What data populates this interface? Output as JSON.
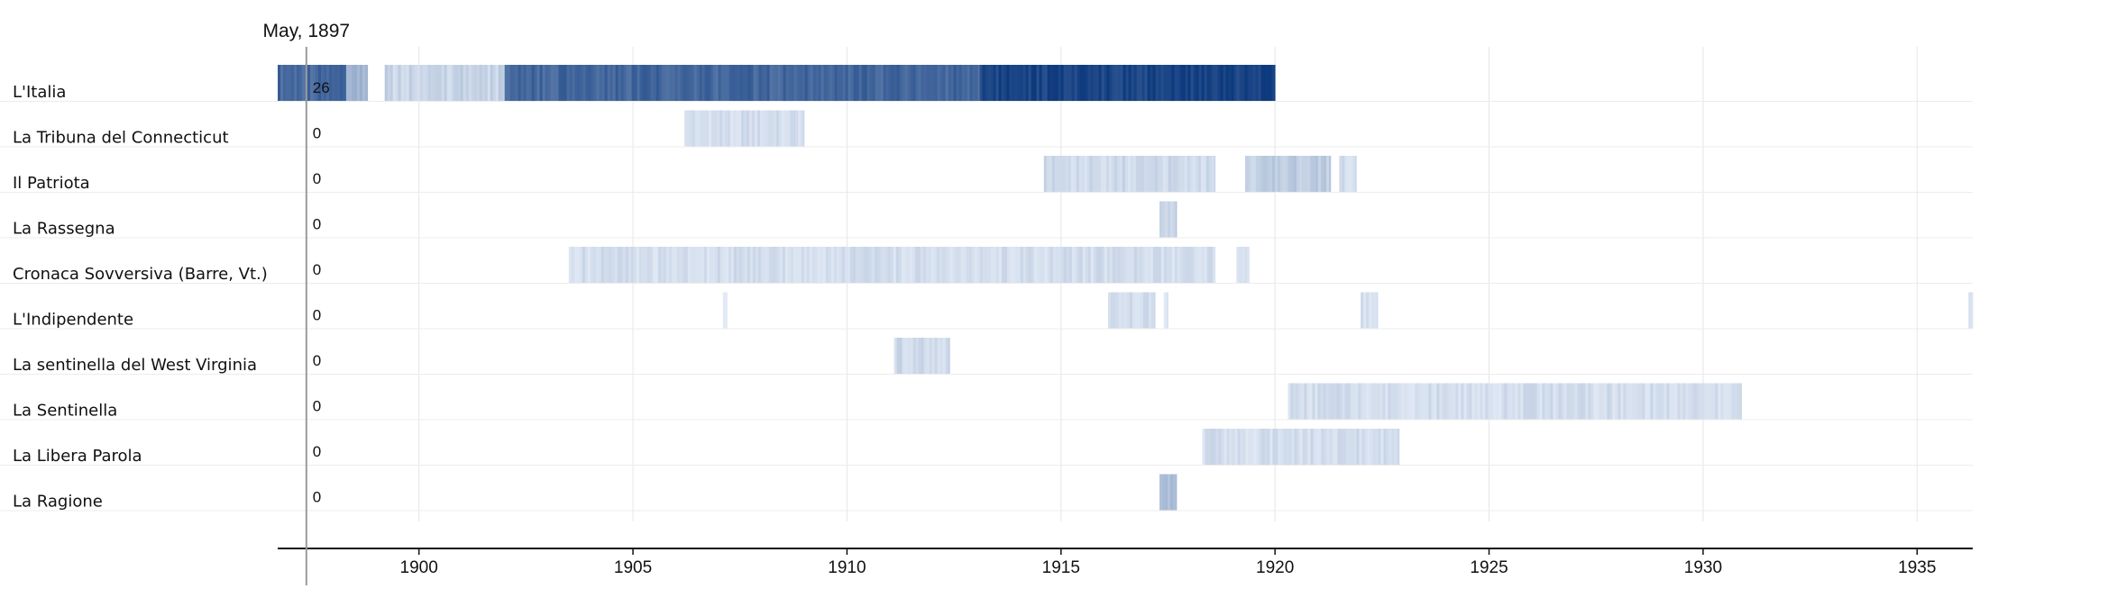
{
  "chart_data": {
    "type": "heatmap",
    "title": "",
    "xlabel": "",
    "ylabel": "",
    "xlim": [
      1896.7,
      1936.3
    ],
    "grid": true,
    "x_ticks": [
      {
        "value": 1900,
        "label": "1900"
      },
      {
        "value": 1905,
        "label": "1905"
      },
      {
        "value": 1910,
        "label": "1910"
      },
      {
        "value": 1915,
        "label": "1915"
      },
      {
        "value": 1920,
        "label": "1920"
      },
      {
        "value": 1925,
        "label": "1925"
      },
      {
        "value": 1930,
        "label": "1930"
      },
      {
        "value": 1935,
        "label": "1935"
      }
    ],
    "cursor": {
      "x": 1897.37,
      "label": "May, 1897"
    },
    "color_scale": {
      "low": "#e9f0f9",
      "high": "#0d3a7e"
    },
    "series": [
      {
        "name": "L'Italia",
        "cursor_value": "26",
        "segments": [
          {
            "start": 1896.7,
            "end": 1898.3,
            "intensity": 0.75
          },
          {
            "start": 1898.3,
            "end": 1898.8,
            "intensity": 0.3
          },
          {
            "start": 1899.2,
            "end": 1902.0,
            "intensity": 0.15
          },
          {
            "start": 1902.0,
            "end": 1913.1,
            "intensity": 0.75
          },
          {
            "start": 1913.1,
            "end": 1920.0,
            "intensity": 0.95
          }
        ]
      },
      {
        "name": "La Tribuna del Connecticut",
        "cursor_value": "0",
        "segments": [
          {
            "start": 1906.2,
            "end": 1909.0,
            "intensity": 0.1
          }
        ]
      },
      {
        "name": "Il Patriota",
        "cursor_value": "0",
        "segments": [
          {
            "start": 1914.6,
            "end": 1918.6,
            "intensity": 0.12
          },
          {
            "start": 1919.3,
            "end": 1921.3,
            "intensity": 0.18
          },
          {
            "start": 1921.5,
            "end": 1921.9,
            "intensity": 0.1
          }
        ]
      },
      {
        "name": "La Rassegna",
        "cursor_value": "0",
        "segments": [
          {
            "start": 1917.3,
            "end": 1917.7,
            "intensity": 0.18
          }
        ]
      },
      {
        "name": "Cronaca Sovversiva (Barre, Vt.)",
        "cursor_value": "0",
        "segments": [
          {
            "start": 1903.5,
            "end": 1918.6,
            "intensity": 0.1
          },
          {
            "start": 1919.1,
            "end": 1919.4,
            "intensity": 0.06
          }
        ]
      },
      {
        "name": "L'Indipendente",
        "cursor_value": "0",
        "segments": [
          {
            "start": 1907.1,
            "end": 1907.2,
            "intensity": 0.06
          },
          {
            "start": 1916.1,
            "end": 1917.2,
            "intensity": 0.12
          },
          {
            "start": 1917.4,
            "end": 1917.5,
            "intensity": 0.06
          },
          {
            "start": 1922.0,
            "end": 1922.4,
            "intensity": 0.1
          },
          {
            "start": 1936.2,
            "end": 1936.3,
            "intensity": 0.06
          }
        ]
      },
      {
        "name": "La sentinella del West Virginia",
        "cursor_value": "0",
        "segments": [
          {
            "start": 1911.1,
            "end": 1912.4,
            "intensity": 0.12
          }
        ]
      },
      {
        "name": "La Sentinella",
        "cursor_value": "0",
        "segments": [
          {
            "start": 1920.3,
            "end": 1930.9,
            "intensity": 0.1
          }
        ]
      },
      {
        "name": "La Libera Parola",
        "cursor_value": "0",
        "segments": [
          {
            "start": 1918.3,
            "end": 1922.9,
            "intensity": 0.1
          }
        ]
      },
      {
        "name": "La Ragione",
        "cursor_value": "0",
        "segments": [
          {
            "start": 1917.3,
            "end": 1917.7,
            "intensity": 0.3
          }
        ]
      }
    ]
  }
}
